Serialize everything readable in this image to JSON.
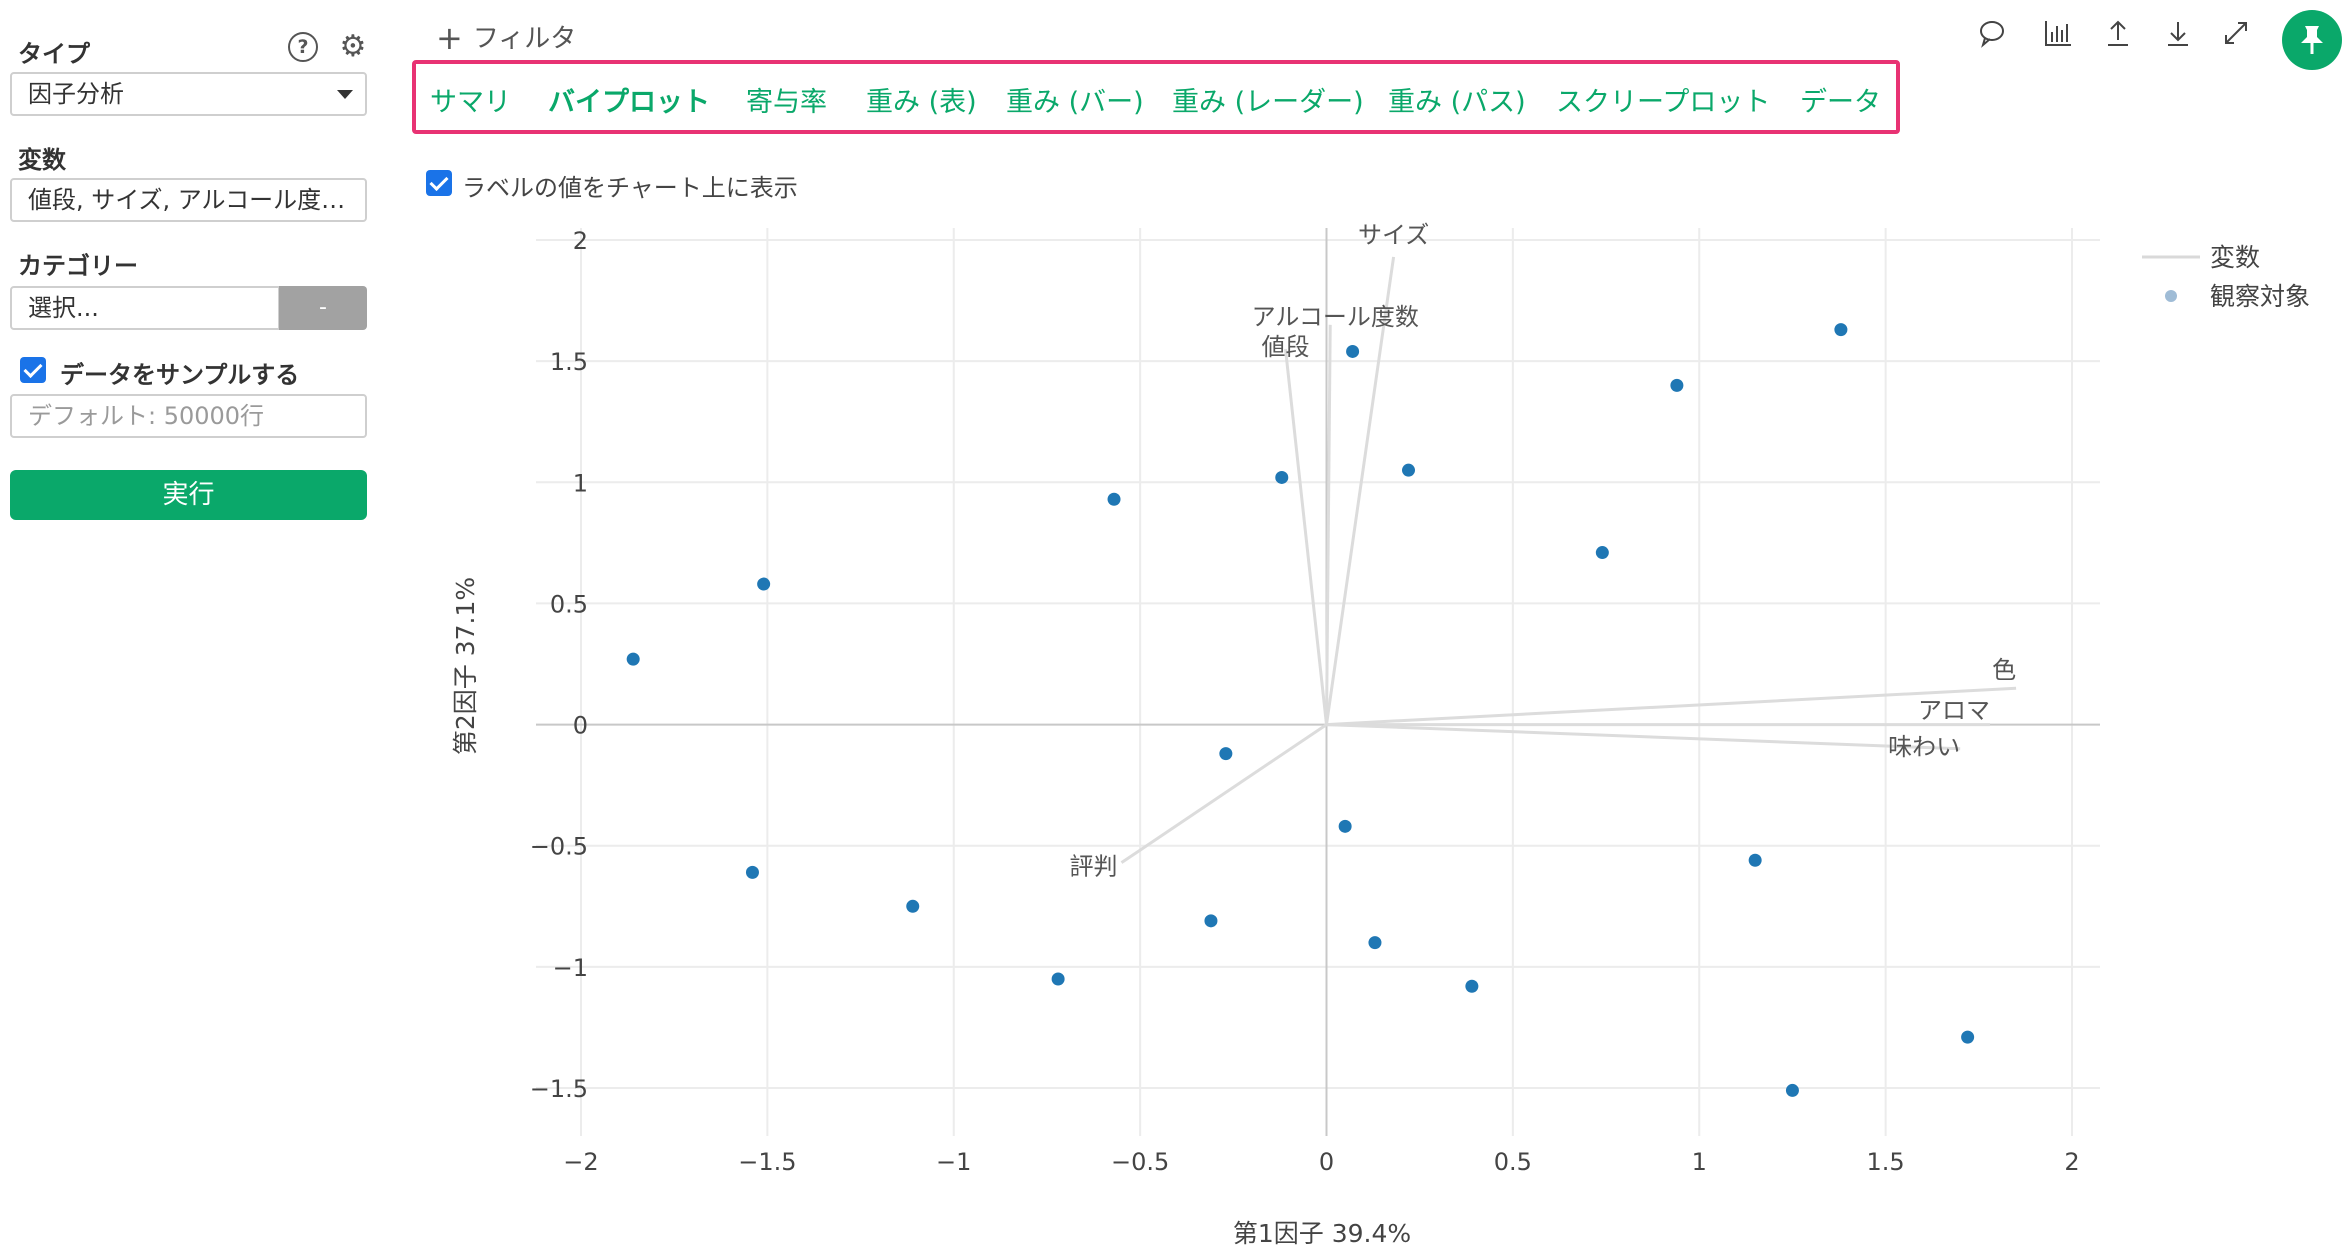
{
  "sidebar": {
    "type_label": "タイプ",
    "help_icon": "?",
    "type_value": "因子分析",
    "variables_label": "変数",
    "variables_value": "値段, サイズ, アルコール度…",
    "category_label": "カテゴリー",
    "category_value": "選択...",
    "category_button": "-",
    "sample_label": "データをサンプルする",
    "sample_placeholder": "デフォルト: 50000行",
    "run_label": "実行"
  },
  "topbar": {
    "filter_label": "フィルタ",
    "icons": [
      "comment-icon",
      "chart-icon",
      "upload-icon",
      "download-icon",
      "expand-icon",
      "pin-icon"
    ]
  },
  "tabs": [
    {
      "label": "サマリ",
      "active": false
    },
    {
      "label": "バイプロット",
      "active": true
    },
    {
      "label": "寄与率",
      "active": false
    },
    {
      "label": "重み (表)",
      "active": false
    },
    {
      "label": "重み (バー)",
      "active": false
    },
    {
      "label": "重み (レーダー)",
      "active": false
    },
    {
      "label": "重み (パス)",
      "active": false
    },
    {
      "label": "スクリープロット",
      "active": false
    },
    {
      "label": "データ",
      "active": false
    }
  ],
  "label_option": "ラベルの値をチャート上に表示",
  "colors": {
    "accent": "#0aa86a",
    "tab_border": "#e83273",
    "point": "#1f77b4",
    "vector": "#d9d9d9",
    "checkbox": "#1a73e8"
  },
  "chart_data": {
    "type": "scatter",
    "xlabel": "第1因子 39.4%",
    "ylabel": "第2因子 37.1%",
    "xlim": [
      -2.0,
      2.0
    ],
    "ylim": [
      -1.65,
      2.05
    ],
    "xticks": [
      -2,
      -1.5,
      -1,
      -0.5,
      0,
      0.5,
      1,
      1.5,
      2
    ],
    "xtick_labels": [
      "−2",
      "−1.5",
      "−1",
      "−0.5",
      "0",
      "0.5",
      "1",
      "1.5",
      "2"
    ],
    "yticks": [
      -1.5,
      -1,
      -0.5,
      0,
      0.5,
      1,
      1.5,
      2
    ],
    "ytick_labels": [
      "−1.5",
      "−1",
      "−0.5",
      "0",
      "0.5",
      "1",
      "1.5",
      "2"
    ],
    "grid": true,
    "legend_position": "top-right",
    "series": [
      {
        "name": "変数",
        "kind": "vectors",
        "vectors": [
          {
            "label": "サイズ",
            "x": 0.18,
            "y": 1.93
          },
          {
            "label": "アルコール度数",
            "x": 0.01,
            "y": 1.65
          },
          {
            "label": "値段",
            "x": -0.11,
            "y": 1.55
          },
          {
            "label": "色",
            "x": 1.85,
            "y": 0.15
          },
          {
            "label": "アロマ",
            "x": 1.78,
            "y": 0.0
          },
          {
            "label": "味わい",
            "x": 1.7,
            "y": -0.1
          },
          {
            "label": "評判",
            "x": -0.55,
            "y": -0.57
          }
        ]
      },
      {
        "name": "観察対象",
        "kind": "points",
        "points": [
          [
            -1.86,
            0.27
          ],
          [
            -1.51,
            0.58
          ],
          [
            -1.54,
            -0.61
          ],
          [
            -1.11,
            -0.75
          ],
          [
            -0.57,
            0.93
          ],
          [
            -0.72,
            -1.05
          ],
          [
            -0.31,
            -0.81
          ],
          [
            -0.27,
            -0.12
          ],
          [
            -0.12,
            1.02
          ],
          [
            0.07,
            1.54
          ],
          [
            0.22,
            1.05
          ],
          [
            0.05,
            -0.42
          ],
          [
            0.13,
            -0.9
          ],
          [
            0.39,
            -1.08
          ],
          [
            0.74,
            0.71
          ],
          [
            0.94,
            1.4
          ],
          [
            1.38,
            1.63
          ],
          [
            1.15,
            -0.56
          ],
          [
            1.25,
            -1.51
          ],
          [
            1.72,
            -1.29
          ]
        ]
      }
    ]
  }
}
